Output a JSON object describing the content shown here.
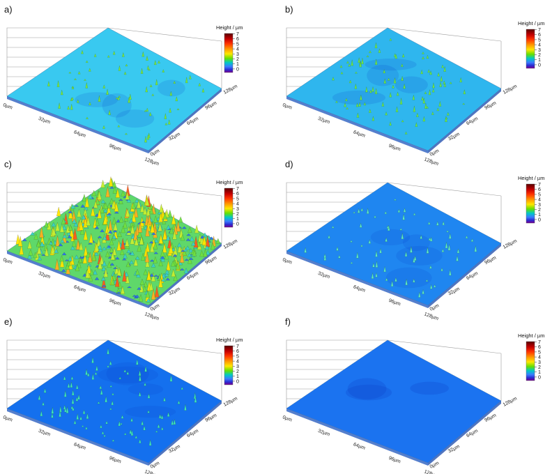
{
  "figure": {
    "colorbar_title": "Height / µm",
    "colorbar_ticks": [
      "7",
      "6",
      "5",
      "4",
      "3",
      "2",
      "1",
      "0"
    ],
    "colorbar_colors": [
      "#5a0000",
      "#b80000",
      "#ff2a00",
      "#ff9900",
      "#ffe600",
      "#66e000",
      "#00c8c8",
      "#3a7bff",
      "#2a2ad0",
      "#7a0090"
    ],
    "front_axis_labels": [
      "0µm",
      "32µm",
      "64µm",
      "96µm",
      "128µm"
    ],
    "right_axis_labels": [
      "0µm",
      "32µm",
      "64µm",
      "96µm",
      "128µm"
    ],
    "panels": [
      {
        "label": "a)",
        "surface_color": "#39c9f0",
        "spike_color": "#7ee83a",
        "spike_density": "sparse",
        "roughness": "low"
      },
      {
        "label": "b)",
        "surface_color": "#2fb6ee",
        "spike_color": "#6fe84a",
        "spike_density": "medium",
        "roughness": "low"
      },
      {
        "label": "c)",
        "surface_color": "#5fd86a",
        "spike_color": "#ffb020",
        "spike_density": "dense",
        "roughness": "high"
      },
      {
        "label": "d)",
        "surface_color": "#1f86f0",
        "spike_color": "#5ee8c8",
        "spike_density": "sparse",
        "roughness": "low"
      },
      {
        "label": "e)",
        "surface_color": "#1470ee",
        "spike_color": "#3fe6c0",
        "spike_density": "medium",
        "roughness": "low"
      },
      {
        "label": "f)",
        "surface_color": "#1b73f0",
        "spike_color": "#1b73f0",
        "spike_density": "none",
        "roughness": "very-low"
      }
    ]
  }
}
